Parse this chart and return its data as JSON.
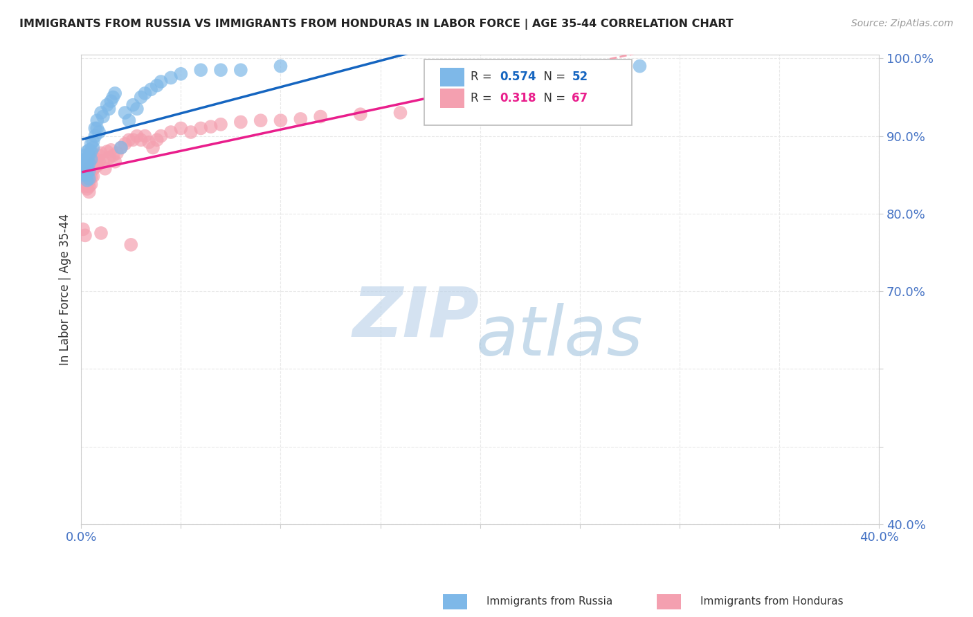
{
  "title": "IMMIGRANTS FROM RUSSIA VS IMMIGRANTS FROM HONDURAS IN LABOR FORCE | AGE 35-44 CORRELATION CHART",
  "source": "Source: ZipAtlas.com",
  "ylabel": "In Labor Force | Age 35-44",
  "xlim": [
    0.0,
    0.4
  ],
  "ylim": [
    0.4,
    1.005
  ],
  "xticks": [
    0.0,
    0.05,
    0.1,
    0.15,
    0.2,
    0.25,
    0.3,
    0.35,
    0.4
  ],
  "yticks": [
    0.4,
    0.5,
    0.6,
    0.7,
    0.8,
    0.9,
    1.0
  ],
  "russia_color": "#7EB8E8",
  "honduras_color": "#F4A0B0",
  "russia_line_color": "#1565C0",
  "honduras_line_color": "#E91E8C",
  "honduras_dash_color": "#F4A0B0",
  "R_russia": 0.574,
  "N_russia": 52,
  "R_honduras": 0.318,
  "N_honduras": 67,
  "russia_x": [
    0.001,
    0.001,
    0.001,
    0.002,
    0.002,
    0.002,
    0.002,
    0.003,
    0.003,
    0.003,
    0.003,
    0.003,
    0.003,
    0.004,
    0.004,
    0.004,
    0.004,
    0.004,
    0.005,
    0.005,
    0.005,
    0.006,
    0.006,
    0.007,
    0.007,
    0.008,
    0.008,
    0.009,
    0.01,
    0.011,
    0.013,
    0.014,
    0.015,
    0.016,
    0.017,
    0.02,
    0.022,
    0.024,
    0.026,
    0.028,
    0.03,
    0.032,
    0.035,
    0.038,
    0.04,
    0.045,
    0.05,
    0.06,
    0.07,
    0.08,
    0.1,
    0.28
  ],
  "russia_y": [
    0.862,
    0.857,
    0.85,
    0.875,
    0.87,
    0.865,
    0.855,
    0.88,
    0.87,
    0.865,
    0.858,
    0.85,
    0.843,
    0.882,
    0.875,
    0.865,
    0.855,
    0.845,
    0.89,
    0.88,
    0.87,
    0.893,
    0.885,
    0.91,
    0.9,
    0.92,
    0.91,
    0.905,
    0.93,
    0.925,
    0.94,
    0.935,
    0.945,
    0.95,
    0.955,
    0.885,
    0.93,
    0.92,
    0.94,
    0.935,
    0.95,
    0.955,
    0.96,
    0.965,
    0.97,
    0.975,
    0.98,
    0.985,
    0.985,
    0.985,
    0.99,
    0.99
  ],
  "honduras_x": [
    0.001,
    0.001,
    0.002,
    0.002,
    0.002,
    0.003,
    0.003,
    0.003,
    0.003,
    0.004,
    0.004,
    0.004,
    0.004,
    0.004,
    0.005,
    0.005,
    0.005,
    0.005,
    0.006,
    0.006,
    0.006,
    0.007,
    0.007,
    0.008,
    0.008,
    0.009,
    0.009,
    0.01,
    0.011,
    0.012,
    0.013,
    0.014,
    0.015,
    0.016,
    0.017,
    0.018,
    0.02,
    0.022,
    0.024,
    0.026,
    0.028,
    0.03,
    0.032,
    0.034,
    0.036,
    0.038,
    0.04,
    0.045,
    0.05,
    0.055,
    0.06,
    0.065,
    0.07,
    0.08,
    0.09,
    0.1,
    0.11,
    0.12,
    0.14,
    0.16,
    0.18,
    0.2,
    0.22,
    0.001,
    0.002,
    0.01,
    0.025
  ],
  "honduras_y": [
    0.845,
    0.838,
    0.85,
    0.842,
    0.835,
    0.855,
    0.848,
    0.84,
    0.832,
    0.858,
    0.85,
    0.842,
    0.835,
    0.828,
    0.862,
    0.855,
    0.847,
    0.838,
    0.865,
    0.857,
    0.848,
    0.868,
    0.86,
    0.87,
    0.862,
    0.875,
    0.867,
    0.878,
    0.868,
    0.858,
    0.88,
    0.872,
    0.882,
    0.875,
    0.867,
    0.878,
    0.885,
    0.89,
    0.895,
    0.895,
    0.9,
    0.895,
    0.9,
    0.892,
    0.885,
    0.895,
    0.9,
    0.905,
    0.91,
    0.905,
    0.91,
    0.912,
    0.915,
    0.918,
    0.92,
    0.92,
    0.922,
    0.925,
    0.928,
    0.93,
    0.932,
    0.935,
    0.937,
    0.78,
    0.772,
    0.775,
    0.76
  ],
  "watermark_zip": "ZIP",
  "watermark_atlas": "atlas",
  "watermark_color_zip": "#B8D0E8",
  "watermark_color_atlas": "#90B8D8",
  "background_color": "#FFFFFF",
  "grid_color": "#E8E8E8",
  "grid_style": "--"
}
